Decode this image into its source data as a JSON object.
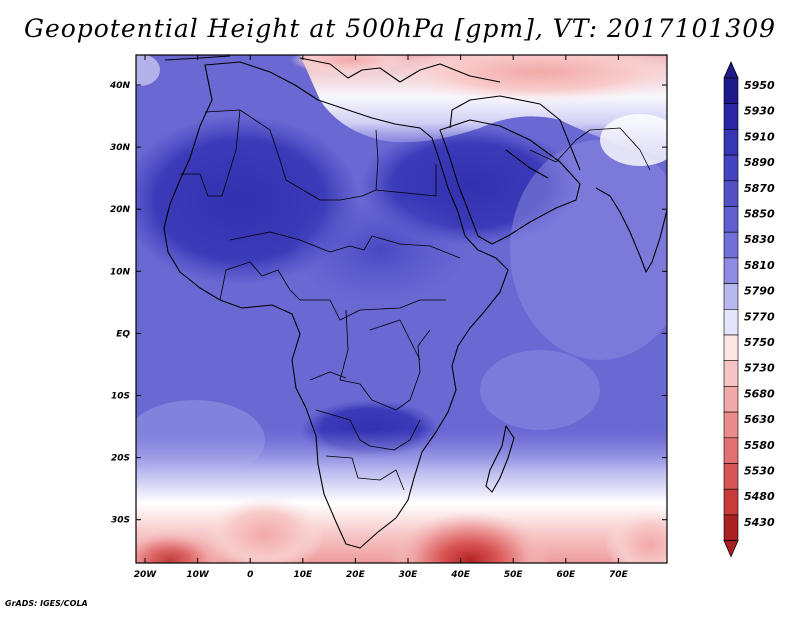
{
  "title": "Geopotential Height at 500hPa [gpm], VT: 2017101309",
  "credit": "GrADS: IGES/COLA",
  "map": {
    "region": "Africa",
    "lon_range": [
      -23,
      80
    ],
    "lat_range": [
      -36,
      46
    ],
    "lon_ticks": [
      "20W",
      "10W",
      "0",
      "10E",
      "20E",
      "30E",
      "40E",
      "50E",
      "60E",
      "70E"
    ],
    "lat_ticks": [
      "40N",
      "30N",
      "20N",
      "10N",
      "EQ",
      "10S",
      "20S",
      "30S"
    ]
  },
  "colorbar": {
    "levels": [
      "5950",
      "5930",
      "5910",
      "5890",
      "5870",
      "5850",
      "5830",
      "5810",
      "5790",
      "5770",
      "5750",
      "5730",
      "5680",
      "5630",
      "5580",
      "5530",
      "5480",
      "5430"
    ],
    "colors": [
      "#1e1a8c",
      "#2a28a8",
      "#3736b6",
      "#4443c0",
      "#5251c8",
      "#6160d0",
      "#7170d8",
      "#8d8ce2",
      "#b8b7ef",
      "#e4e4fa",
      "#fde6e6",
      "#f7c4c4",
      "#f1a8a8",
      "#ea8c8c",
      "#e27070",
      "#d95555",
      "#c93a3a",
      "#a82020"
    ]
  }
}
